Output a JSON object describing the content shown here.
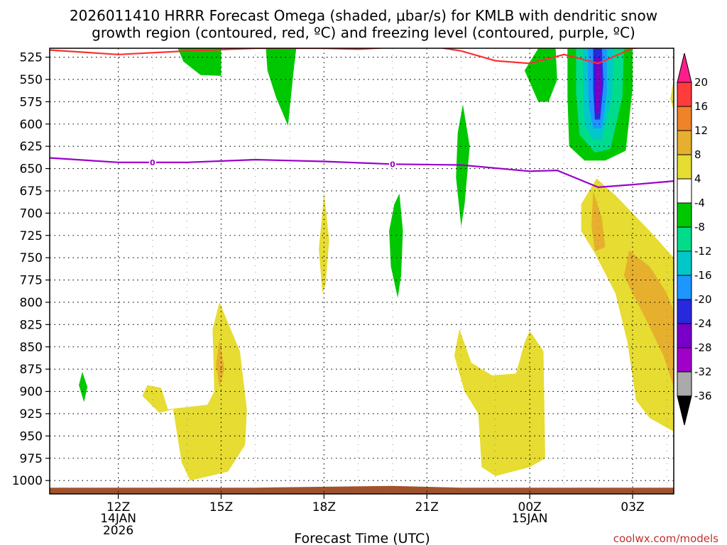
{
  "chart_data": {
    "type": "time-height contour",
    "title_line1": "2026011410 HRRR Forecast Omega (shaded, μbar/s) for KMLB with dendritic snow",
    "title_line2": "growth region (contoured, red, ºC) and freezing level (contoured, purple, ºC)",
    "xlabel": "Forecast Time (UTC)",
    "credit": "coolwx.com/models",
    "x_range_hours": [
      10,
      28.2
    ],
    "y_range_hpa": [
      515,
      1015
    ],
    "pressure_levels": [
      525,
      550,
      575,
      600,
      625,
      650,
      675,
      700,
      725,
      750,
      775,
      800,
      825,
      850,
      875,
      900,
      925,
      950,
      975,
      1000
    ],
    "x_ticks": [
      {
        "hour": 12,
        "line1": "12Z",
        "line2": "14JAN",
        "line3": "2026"
      },
      {
        "hour": 15,
        "line1": "15Z",
        "line2": "",
        "line3": ""
      },
      {
        "hour": 18,
        "line1": "18Z",
        "line2": "",
        "line3": ""
      },
      {
        "hour": 21,
        "line1": "21Z",
        "line2": "",
        "line3": ""
      },
      {
        "hour": 24,
        "line1": "00Z",
        "line2": "15JAN",
        "line3": ""
      },
      {
        "hour": 27,
        "line1": "03Z",
        "line2": "",
        "line3": ""
      }
    ],
    "colorbar": {
      "labels": [
        "20",
        "16",
        "12",
        "8",
        "4",
        "-4",
        "-8",
        "-12",
        "-16",
        "-20",
        "-24",
        "-28",
        "-32",
        "-36"
      ],
      "colors": [
        "#ff1e8c",
        "#ff3c3c",
        "#f08228",
        "#e6af2d",
        "#e6dc32",
        "#ffffff",
        "#00c800",
        "#00dc8c",
        "#00c8c8",
        "#1e96ff",
        "#2828dc",
        "#7800c8",
        "#a000c8",
        "#aaaaaa",
        "#000000"
      ]
    },
    "freezing_level": {
      "label": "0",
      "points": [
        [
          10,
          638
        ],
        [
          12,
          643
        ],
        [
          14,
          643
        ],
        [
          16,
          640
        ],
        [
          18,
          642
        ],
        [
          20,
          645
        ],
        [
          22,
          646
        ],
        [
          24,
          653
        ],
        [
          24.8,
          652
        ],
        [
          26,
          671
        ],
        [
          27,
          668
        ],
        [
          28.2,
          664
        ]
      ]
    },
    "dgz_line": {
      "points": [
        [
          10,
          517
        ],
        [
          12,
          522
        ],
        [
          14,
          518
        ],
        [
          16,
          515
        ],
        [
          18,
          515
        ],
        [
          19,
          516
        ],
        [
          20,
          514
        ],
        [
          21,
          512
        ],
        [
          22,
          518
        ],
        [
          23,
          529
        ],
        [
          24,
          532
        ],
        [
          25,
          522
        ],
        [
          26,
          532
        ],
        [
          27,
          515
        ],
        [
          28.2,
          512
        ]
      ]
    },
    "terrain": {
      "points": [
        [
          10,
          1008
        ],
        [
          16,
          1008
        ],
        [
          20,
          1006
        ],
        [
          21,
          1007
        ],
        [
          22,
          1008
        ],
        [
          28.2,
          1008
        ]
      ]
    },
    "omega_features": [
      {
        "name": "omega-neg8-upper-14z",
        "value": -8,
        "color": "#00c800",
        "points": [
          [
            13.7,
            512
          ],
          [
            15,
            512
          ],
          [
            15,
            546
          ],
          [
            14.4,
            545
          ],
          [
            13.9,
            530
          ]
        ]
      },
      {
        "name": "omega-neg8-upper-17z",
        "value": -8,
        "color": "#00c800",
        "points": [
          [
            16.3,
            512
          ],
          [
            17.2,
            512
          ],
          [
            17.1,
            545
          ],
          [
            16.95,
            602
          ],
          [
            16.6,
            570
          ],
          [
            16.35,
            540
          ]
        ]
      },
      {
        "name": "omega-neg8-2230z",
        "value": -8,
        "color": "#00c800",
        "points": [
          [
            22.05,
            578
          ],
          [
            22.25,
            625
          ],
          [
            22.1,
            690
          ],
          [
            22.0,
            715
          ],
          [
            21.85,
            660
          ],
          [
            21.9,
            610
          ]
        ]
      },
      {
        "name": "omega-neg8-20z",
        "value": -8,
        "color": "#00c800",
        "points": [
          [
            20.2,
            678
          ],
          [
            20.3,
            720
          ],
          [
            20.25,
            770
          ],
          [
            20.15,
            795
          ],
          [
            19.95,
            760
          ],
          [
            19.9,
            720
          ],
          [
            20.05,
            690
          ]
        ]
      },
      {
        "name": "omega-neg8-11z",
        "value": -8,
        "color": "#00c800",
        "points": [
          [
            10.95,
            878
          ],
          [
            11.1,
            895
          ],
          [
            11.0,
            912
          ],
          [
            10.85,
            893
          ]
        ]
      },
      {
        "name": "omega-neg8-0030z",
        "value": -8,
        "color": "#00c800",
        "points": [
          [
            24.3,
            512
          ],
          [
            24.75,
            512
          ],
          [
            24.8,
            550
          ],
          [
            24.55,
            575
          ],
          [
            24.25,
            575
          ],
          [
            23.85,
            540
          ]
        ]
      },
      {
        "name": "omega-neg8-02z",
        "value": -8,
        "color": "#00c800",
        "points": [
          [
            25.1,
            512
          ],
          [
            27.0,
            512
          ],
          [
            27.0,
            560
          ],
          [
            26.8,
            630
          ],
          [
            26.2,
            641
          ],
          [
            25.6,
            641
          ],
          [
            25.15,
            625
          ],
          [
            25.1,
            570
          ]
        ]
      },
      {
        "name": "omega-neg12-02z",
        "value": -12,
        "color": "#00dc8c",
        "points": [
          [
            25.35,
            512
          ],
          [
            26.75,
            512
          ],
          [
            26.7,
            570
          ],
          [
            26.35,
            628
          ],
          [
            25.9,
            632
          ],
          [
            25.45,
            612
          ],
          [
            25.35,
            565
          ]
        ]
      },
      {
        "name": "omega-neg16-02z",
        "value": -16,
        "color": "#00c8c8",
        "points": [
          [
            25.55,
            512
          ],
          [
            26.45,
            512
          ],
          [
            26.4,
            570
          ],
          [
            26.1,
            618
          ],
          [
            25.85,
            618
          ],
          [
            25.6,
            600
          ],
          [
            25.55,
            560
          ]
        ]
      },
      {
        "name": "omega-neg20-02z",
        "value": -20,
        "color": "#1e96ff",
        "points": [
          [
            25.7,
            512
          ],
          [
            26.25,
            512
          ],
          [
            26.25,
            565
          ],
          [
            26.1,
            605
          ],
          [
            25.85,
            605
          ],
          [
            25.72,
            580
          ],
          [
            25.7,
            545
          ]
        ]
      },
      {
        "name": "omega-neg24-02z",
        "value": -24,
        "color": "#2828dc",
        "points": [
          [
            25.85,
            512
          ],
          [
            26.1,
            512
          ],
          [
            26.15,
            555
          ],
          [
            26.05,
            595
          ],
          [
            25.9,
            595
          ],
          [
            25.85,
            560
          ]
        ]
      },
      {
        "name": "omega-neg28-02z",
        "value": -28,
        "color": "#7800c8",
        "points": [
          [
            25.9,
            525
          ],
          [
            26.05,
            525
          ],
          [
            26.1,
            560
          ],
          [
            26.0,
            588
          ],
          [
            25.92,
            588
          ],
          [
            25.9,
            560
          ]
        ]
      },
      {
        "name": "omega-pos4-1530z",
        "value": 4,
        "color": "#e6dc32",
        "points": [
          [
            14.95,
            800
          ],
          [
            15.55,
            855
          ],
          [
            15.75,
            920
          ],
          [
            15.7,
            960
          ],
          [
            15.2,
            990
          ],
          [
            14.1,
            1000
          ],
          [
            13.85,
            980
          ],
          [
            13.6,
            920
          ],
          [
            13.2,
            924
          ],
          [
            12.7,
            905
          ],
          [
            12.85,
            893
          ],
          [
            13.25,
            896
          ],
          [
            13.45,
            920
          ],
          [
            14.6,
            915
          ],
          [
            14.8,
            900
          ],
          [
            14.75,
            830
          ]
        ]
      },
      {
        "name": "omega-pos8-15z",
        "value": 8,
        "color": "#e6af2d",
        "points": [
          [
            14.95,
            842
          ],
          [
            15.1,
            875
          ],
          [
            14.95,
            895
          ],
          [
            14.85,
            870
          ]
        ]
      },
      {
        "name": "omega-pos4-18z",
        "value": 4,
        "color": "#e6dc32",
        "points": [
          [
            18.0,
            676
          ],
          [
            18.15,
            730
          ],
          [
            18.05,
            780
          ],
          [
            17.95,
            790
          ],
          [
            17.85,
            740
          ],
          [
            17.95,
            700
          ]
        ]
      },
      {
        "name": "omega-pos4-2230z",
        "value": 4,
        "color": "#e6dc32",
        "points": [
          [
            21.95,
            830
          ],
          [
            22.3,
            868
          ],
          [
            22.9,
            882
          ],
          [
            23.6,
            880
          ],
          [
            23.85,
            845
          ],
          [
            24.0,
            832
          ],
          [
            24.4,
            855
          ],
          [
            24.45,
            975
          ],
          [
            24.0,
            985
          ],
          [
            23.0,
            995
          ],
          [
            22.6,
            985
          ],
          [
            22.5,
            925
          ],
          [
            22.1,
            900
          ],
          [
            21.8,
            860
          ]
        ]
      },
      {
        "name": "omega-pos4-03z",
        "value": 4,
        "color": "#e6dc32",
        "points": [
          [
            25.95,
            661
          ],
          [
            26.5,
            680
          ],
          [
            27.0,
            700
          ],
          [
            27.5,
            720
          ],
          [
            28.2,
            750
          ],
          [
            28.2,
            945
          ],
          [
            27.5,
            930
          ],
          [
            27.1,
            910
          ],
          [
            26.85,
            845
          ],
          [
            26.5,
            790
          ],
          [
            25.9,
            745
          ],
          [
            25.5,
            720
          ],
          [
            25.5,
            690
          ]
        ]
      },
      {
        "name": "omega-pos8-0130z",
        "value": 8,
        "color": "#e6af2d",
        "points": [
          [
            25.85,
            675
          ],
          [
            26.1,
            705
          ],
          [
            26.2,
            738
          ],
          [
            25.9,
            743
          ],
          [
            25.8,
            715
          ]
        ]
      },
      {
        "name": "omega-pos8-03z",
        "value": 8,
        "color": "#e6af2d",
        "points": [
          [
            26.9,
            742
          ],
          [
            27.5,
            760
          ],
          [
            28.0,
            790
          ],
          [
            28.2,
            810
          ],
          [
            28.2,
            895
          ],
          [
            27.9,
            860
          ],
          [
            27.4,
            820
          ],
          [
            27.0,
            790
          ],
          [
            26.75,
            770
          ]
        ]
      },
      {
        "name": "omega-pos4-right-edge",
        "value": 4,
        "color": "#e6dc32",
        "points": [
          [
            28.2,
            550
          ],
          [
            28.2,
            585
          ],
          [
            28.1,
            572
          ]
        ]
      }
    ]
  }
}
